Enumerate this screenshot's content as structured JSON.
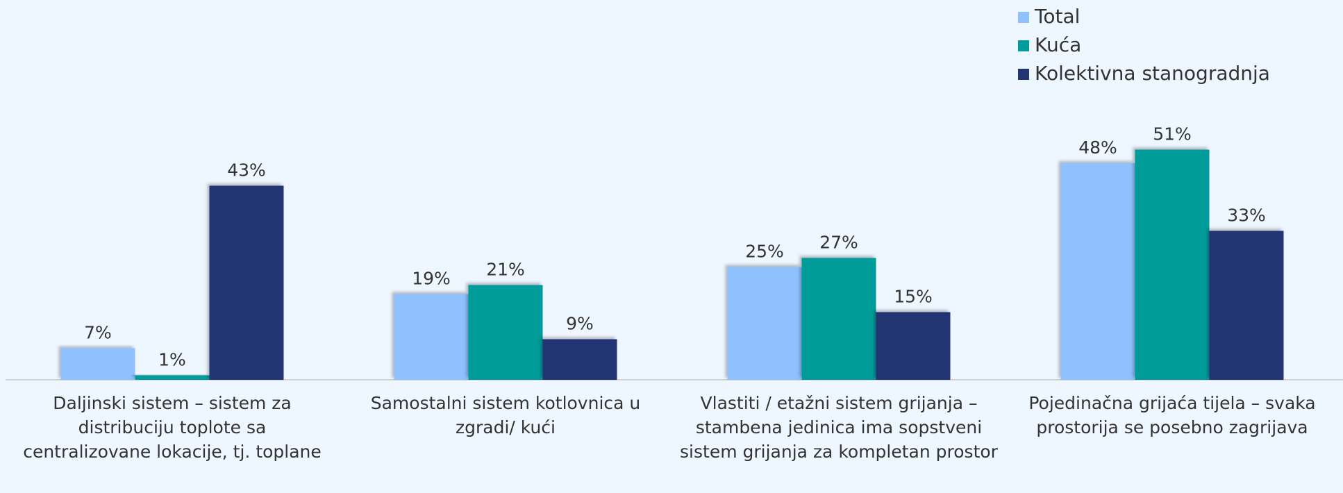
{
  "chart_data": {
    "type": "bar",
    "categories": [
      "Daljinski sistem – sistem za distribuciju toplote sa centralizovane lokacije, tj. toplane",
      "Samostalni sistem kotlovnica u zgradi/ kući",
      "Vlastiti / etažni sistem grijanja – stambena jedinica ima sopstveni sistem grijanja za kompletan prostor",
      "Pojedinačna grijaća tijela – svaka prostorija se posebno zagrijava"
    ],
    "series": [
      {
        "name": "Total",
        "color": "#8fc1ff",
        "values": [
          7,
          19,
          25,
          48
        ],
        "value_labels": [
          "7%",
          "19%",
          "25%",
          "48%"
        ]
      },
      {
        "name": "Kuća",
        "color": "#009c9a",
        "values": [
          1,
          21,
          27,
          51
        ],
        "value_labels": [
          "1%",
          "21%",
          "27%",
          "51%"
        ]
      },
      {
        "name": "Kolektivna stanogradnja",
        "color": "#233472",
        "values": [
          43,
          9,
          15,
          33
        ],
        "value_labels": [
          "43%",
          "9%",
          "15%",
          "33%"
        ]
      }
    ],
    "legend": "top-right"
  }
}
